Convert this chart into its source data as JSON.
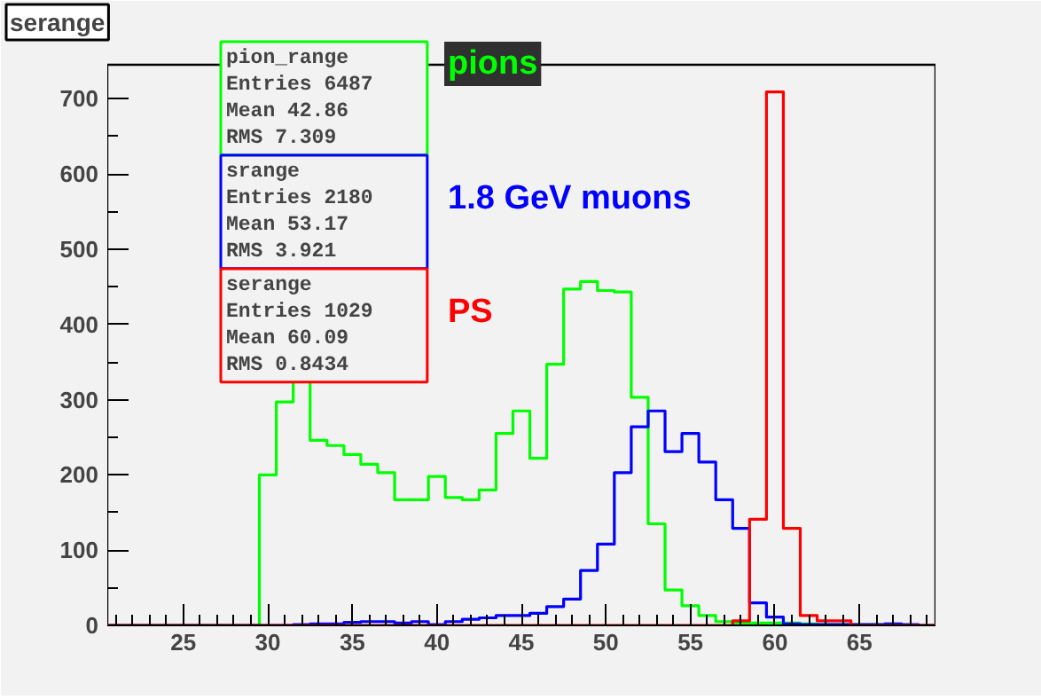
{
  "chart_data": {
    "type": "histogram",
    "title": "serange",
    "bins": [
      20.5,
      21.5,
      22.5,
      23.5,
      24.5,
      25.5,
      26.5,
      27.5,
      28.5,
      29.5,
      30.5,
      31.5,
      32.5,
      33.5,
      34.5,
      35.5,
      36.5,
      37.5,
      38.5,
      39.5,
      40.5,
      41.5,
      42.5,
      43.5,
      44.5,
      45.5,
      46.5,
      47.5,
      48.5,
      49.5,
      50.5,
      51.5,
      52.5,
      53.5,
      54.5,
      55.5,
      56.5,
      57.5,
      58.5,
      59.5,
      60.5,
      61.5,
      62.5,
      63.5,
      64.5,
      65.5,
      66.5,
      67.5,
      68.5,
      69.5
    ],
    "series": [
      {
        "name": "pions",
        "color": "#00ff00",
        "values": [
          0,
          0,
          0,
          0,
          0,
          0,
          0,
          0,
          0,
          200,
          297,
          325,
          246,
          239,
          227,
          214,
          203,
          167,
          167,
          198,
          170,
          167,
          180,
          255,
          285,
          222,
          347,
          447,
          457,
          445,
          443,
          303,
          135,
          47,
          26,
          13,
          5,
          3,
          3,
          3,
          3,
          2,
          1,
          1,
          1,
          1,
          2,
          0,
          0
        ]
      },
      {
        "name": "1.8 GeV muons",
        "color": "#0000ff",
        "values": [
          0,
          0,
          0,
          0,
          0,
          0,
          0,
          0,
          0,
          0,
          0,
          1,
          2,
          2,
          4,
          5,
          5,
          3,
          5,
          1,
          5,
          8,
          10,
          13,
          13,
          16,
          25,
          35,
          73,
          108,
          203,
          264,
          285,
          231,
          255,
          217,
          167,
          129,
          30,
          11,
          2,
          1,
          1,
          1,
          1,
          1,
          2,
          1,
          0
        ]
      },
      {
        "name": "PS",
        "color": "#ff0000",
        "values": [
          0,
          0,
          0,
          0,
          0,
          0,
          0,
          0,
          0,
          0,
          0,
          0,
          0,
          0,
          0,
          0,
          0,
          0,
          0,
          0,
          0,
          0,
          0,
          0,
          0,
          0,
          0,
          0,
          0,
          0,
          0,
          0,
          0,
          0,
          0,
          0,
          0,
          6,
          141,
          709,
          129,
          13,
          6,
          6,
          0,
          0,
          0,
          0,
          0
        ]
      }
    ],
    "xlim": [
      20.5,
      69.5
    ],
    "ylim": [
      0,
      745
    ],
    "xticks": [
      25,
      30,
      35,
      40,
      45,
      50,
      55,
      60,
      65
    ],
    "yticks": [
      0,
      100,
      200,
      300,
      400,
      500,
      600,
      700
    ],
    "grid": false,
    "annotations": [
      "pion_range\nEntries 6487\nMean 42.86\nRMS 7.309",
      "srange\nEntries 2180\nMean 53.17\nRMS 3.921",
      "serange\nEntries 1029\nMean 60.09\nRMS 0.8434"
    ]
  }
}
